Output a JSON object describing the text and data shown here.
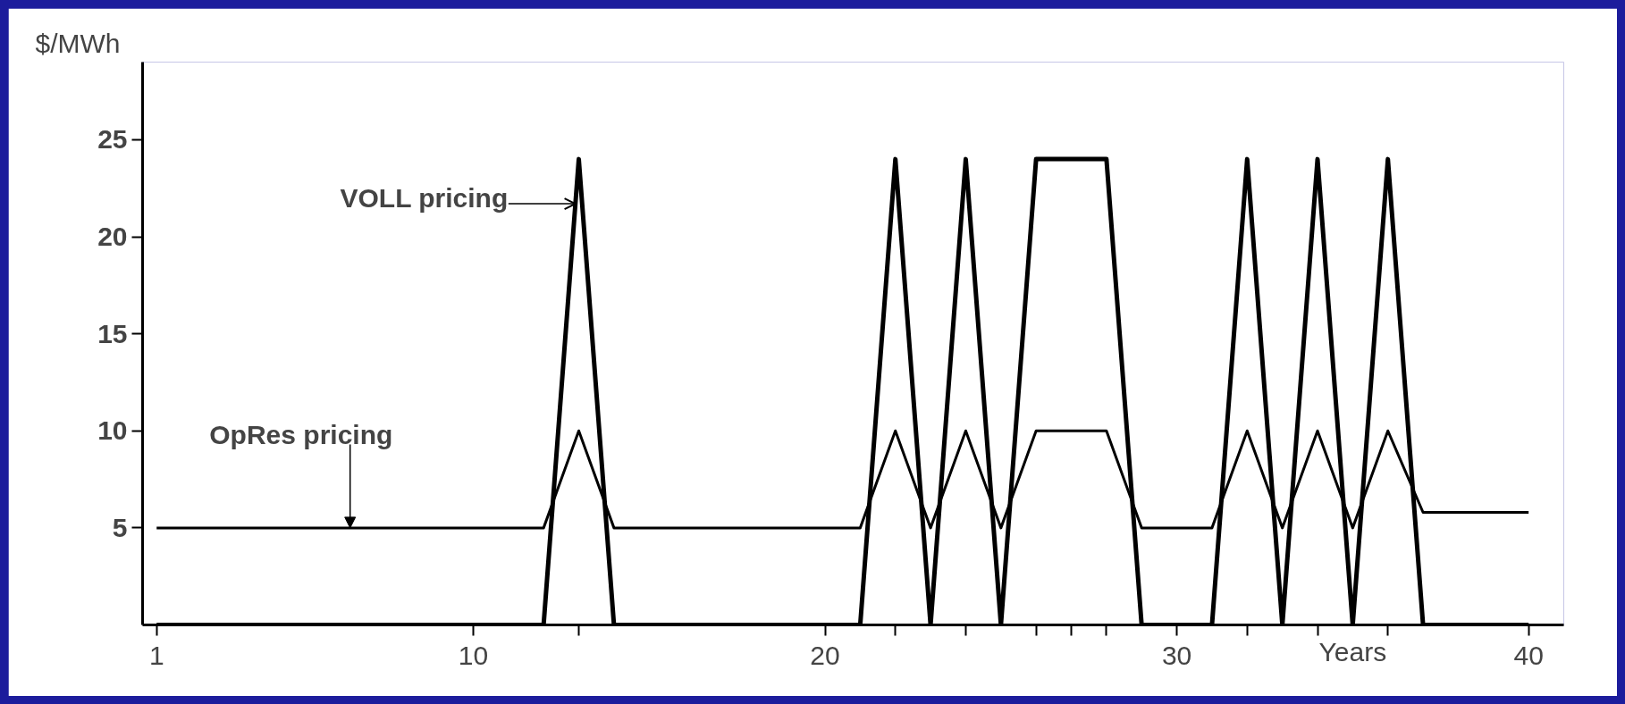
{
  "chart_data": {
    "type": "line",
    "ylabel": "$/MWh",
    "xlabel": "Years",
    "x": [
      1,
      12,
      13,
      14,
      21,
      22,
      23,
      24,
      25,
      26,
      28,
      29,
      31,
      32,
      33,
      34,
      35,
      36,
      37,
      40
    ],
    "series": [
      {
        "color": "#000000",
        "values": [
          0,
          0,
          24,
          0,
          0,
          24,
          0,
          24,
          0,
          24,
          24,
          0,
          0,
          24,
          0,
          24,
          0,
          24,
          0,
          0
        ]
      },
      {
        "color": "#000000",
        "values": [
          5,
          5,
          10,
          5,
          5,
          10,
          5,
          10,
          5,
          10,
          10,
          5,
          5,
          10,
          5,
          10,
          5,
          10,
          5.8,
          5.8
        ]
      }
    ],
    "xlim": [
      0.6,
      41
    ],
    "ylim": [
      0,
      29
    ],
    "xticks": [
      1,
      10,
      20,
      30,
      40,
      {
        "value": 13,
        "label": null
      },
      {
        "value": 22,
        "label": null
      },
      {
        "value": 24,
        "label": null
      },
      {
        "value": 26,
        "label": null
      },
      {
        "value": 27,
        "label": null
      },
      {
        "value": 28,
        "label": null
      },
      {
        "value": 32,
        "label": null
      },
      {
        "value": 34,
        "label": null
      },
      {
        "value": 36,
        "label": null
      }
    ],
    "yticks": [
      5,
      10,
      15,
      20,
      25
    ],
    "annotations": [
      {
        "text": "VOLL pricing",
        "x": 12.9,
        "y": 21.7
      },
      {
        "text": "OpRes pricing",
        "x": 6.5,
        "y": 5
      }
    ],
    "grid": false,
    "marker": "none",
    "line_style": "solid"
  }
}
